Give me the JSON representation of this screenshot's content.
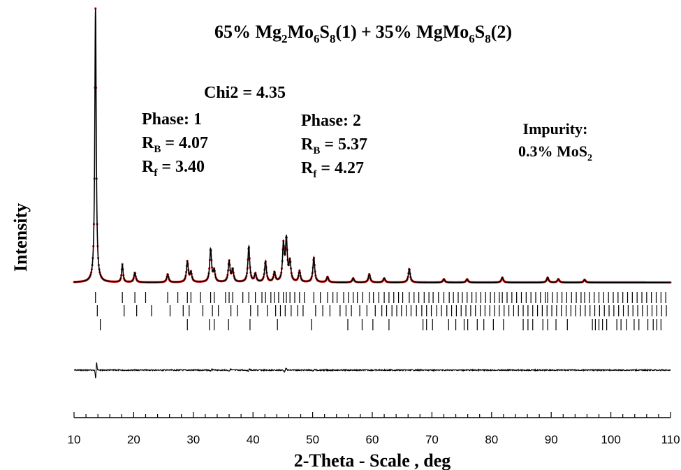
{
  "chart_data": {
    "type": "line",
    "title": {
      "p1": "65% Mg",
      "s1": "2",
      "p2": "Mo",
      "s2": "6",
      "p3": "S",
      "s3": "8",
      "p4": "(1)",
      "p5": "+",
      "p6": "35% MgMo",
      "s4": "6",
      "p7": "S",
      "s5": "8",
      "p8": "(2)"
    },
    "xlabel": "2-Theta - Scale , deg",
    "ylabel": "Intensity",
    "xlim": [
      10,
      110
    ],
    "x_ticks": [
      10,
      20,
      30,
      40,
      50,
      60,
      70,
      80,
      90,
      100,
      110
    ],
    "x_tick_labels": [
      "10",
      "20",
      "30",
      "40",
      "50",
      "60",
      "70",
      "80",
      "90",
      "100",
      "110"
    ],
    "ylim": [
      0,
      1
    ],
    "grid": false,
    "annotations": {
      "chi2": "Chi2 = 4.35",
      "phase1": {
        "title": "Phase:  1",
        "rb_main": "R",
        "rb_sub": "B",
        "rb_val": " =   4.07",
        "rf_main": "R",
        "rf_sub": "f",
        "rf_val": " = 3.40"
      },
      "phase2": {
        "title": "Phase:  2",
        "rb_main": "R",
        "rb_sub": "B",
        "rb_val": " =   5.37",
        "rf_main": "R",
        "rf_sub": "f",
        "rf_val": " = 4.27"
      },
      "impurity": {
        "title": "Impurity:",
        "main": "0.3% MoS",
        "sub": "2"
      }
    },
    "colors": {
      "observed": "#cc2222",
      "calculated": "#000000",
      "difference": "#000000",
      "ticks": "#000000"
    },
    "peaks": [
      {
        "pos": 13.6,
        "height": 1.0
      },
      {
        "pos": 18.1,
        "height": 0.065
      },
      {
        "pos": 20.2,
        "height": 0.035
      },
      {
        "pos": 25.7,
        "height": 0.03
      },
      {
        "pos": 29.0,
        "height": 0.075
      },
      {
        "pos": 29.6,
        "height": 0.035
      },
      {
        "pos": 32.9,
        "height": 0.12
      },
      {
        "pos": 33.5,
        "height": 0.04
      },
      {
        "pos": 36.0,
        "height": 0.075
      },
      {
        "pos": 36.6,
        "height": 0.045
      },
      {
        "pos": 39.3,
        "height": 0.13
      },
      {
        "pos": 40.4,
        "height": 0.03
      },
      {
        "pos": 42.1,
        "height": 0.075
      },
      {
        "pos": 43.6,
        "height": 0.035
      },
      {
        "pos": 45.1,
        "height": 0.13
      },
      {
        "pos": 45.6,
        "height": 0.15
      },
      {
        "pos": 46.2,
        "height": 0.07
      },
      {
        "pos": 47.8,
        "height": 0.04
      },
      {
        "pos": 50.2,
        "height": 0.09
      },
      {
        "pos": 52.5,
        "height": 0.02
      },
      {
        "pos": 56.8,
        "height": 0.015
      },
      {
        "pos": 59.5,
        "height": 0.03
      },
      {
        "pos": 62.0,
        "height": 0.015
      },
      {
        "pos": 66.2,
        "height": 0.05
      },
      {
        "pos": 72.0,
        "height": 0.012
      },
      {
        "pos": 75.9,
        "height": 0.012
      },
      {
        "pos": 81.8,
        "height": 0.018
      },
      {
        "pos": 89.4,
        "height": 0.018
      },
      {
        "pos": 91.2,
        "height": 0.012
      },
      {
        "pos": 95.6,
        "height": 0.01
      }
    ],
    "reflections_phase1": [
      13.6,
      18.1,
      20.2,
      22.0,
      25.7,
      27.4,
      29.0,
      29.6,
      31.2,
      32.9,
      33.5,
      35.4,
      36.0,
      36.6,
      38.3,
      39.3,
      40.4,
      41.5,
      42.1,
      43.0,
      43.6,
      44.3,
      45.1,
      45.6,
      46.2,
      47.0,
      47.8,
      48.6,
      50.2,
      51.3,
      52.5,
      53.4,
      54.1,
      55.2,
      56.0,
      56.8,
      57.5,
      58.4,
      59.5,
      60.2,
      61.1,
      62.0,
      62.8,
      63.6,
      64.4,
      65.1,
      66.2,
      67.0,
      67.8,
      68.7,
      69.5,
      70.2,
      71.1,
      72.0,
      72.9,
      73.6,
      74.4,
      75.1,
      75.9,
      76.7,
      77.4,
      78.2,
      79.0,
      79.8,
      80.5,
      81.3,
      81.8,
      82.6,
      83.4,
      84.2,
      85.0,
      85.8,
      86.6,
      87.4,
      88.2,
      89.0,
      89.4,
      90.2,
      91.0,
      91.8,
      92.6,
      93.4,
      94.2,
      95.0,
      95.6,
      96.4,
      97.2,
      98.0,
      98.8,
      99.6,
      100.4,
      101.2,
      102.0,
      102.8,
      103.6,
      104.4,
      105.2,
      106.0,
      106.8,
      107.6,
      108.4,
      109.2
    ],
    "reflections_phase2": [
      13.9,
      18.4,
      20.5,
      23.0,
      26.1,
      28.3,
      29.3,
      31.6,
      33.2,
      34.2,
      36.3,
      37.4,
      39.6,
      40.8,
      42.4,
      43.8,
      44.6,
      45.4,
      46.4,
      47.5,
      48.4,
      50.5,
      51.7,
      52.9,
      54.6,
      55.6,
      56.5,
      57.9,
      59.1,
      60.5,
      61.6,
      62.4,
      63.3,
      64.1,
      64.9,
      65.7,
      66.5,
      67.4,
      68.3,
      69.1,
      69.9,
      70.8,
      71.6,
      72.5,
      73.3,
      74.1,
      74.9,
      75.7,
      76.5,
      77.3,
      78.1,
      78.9,
      79.7,
      80.5,
      81.3,
      82.1,
      82.9,
      83.7,
      84.5,
      85.3,
      86.1,
      86.9,
      87.7,
      88.5,
      89.3,
      90.1,
      90.9,
      91.7,
      92.5,
      93.3,
      94.1,
      94.9,
      95.7,
      96.5,
      97.3,
      98.1,
      98.9,
      99.7,
      100.5,
      101.3,
      102.1,
      102.9,
      103.7,
      104.5,
      105.3,
      106.1,
      106.9,
      107.7,
      108.5,
      109.3
    ],
    "reflections_impurity": [
      14.4,
      29.0,
      32.7,
      33.5,
      35.9,
      39.5,
      44.1,
      49.8,
      55.9,
      58.3,
      60.1,
      62.8,
      68.5,
      69.1,
      70.1,
      72.8,
      74.0,
      75.4,
      76.0,
      77.6,
      78.7,
      80.3,
      82.0,
      85.3,
      86.1,
      86.9,
      88.6,
      89.4,
      90.8,
      92.7,
      96.9,
      97.4,
      98.0,
      98.6,
      99.3,
      101.0,
      101.7,
      102.6,
      103.9,
      104.7,
      106.2,
      107.1,
      107.7,
      108.4
    ]
  }
}
